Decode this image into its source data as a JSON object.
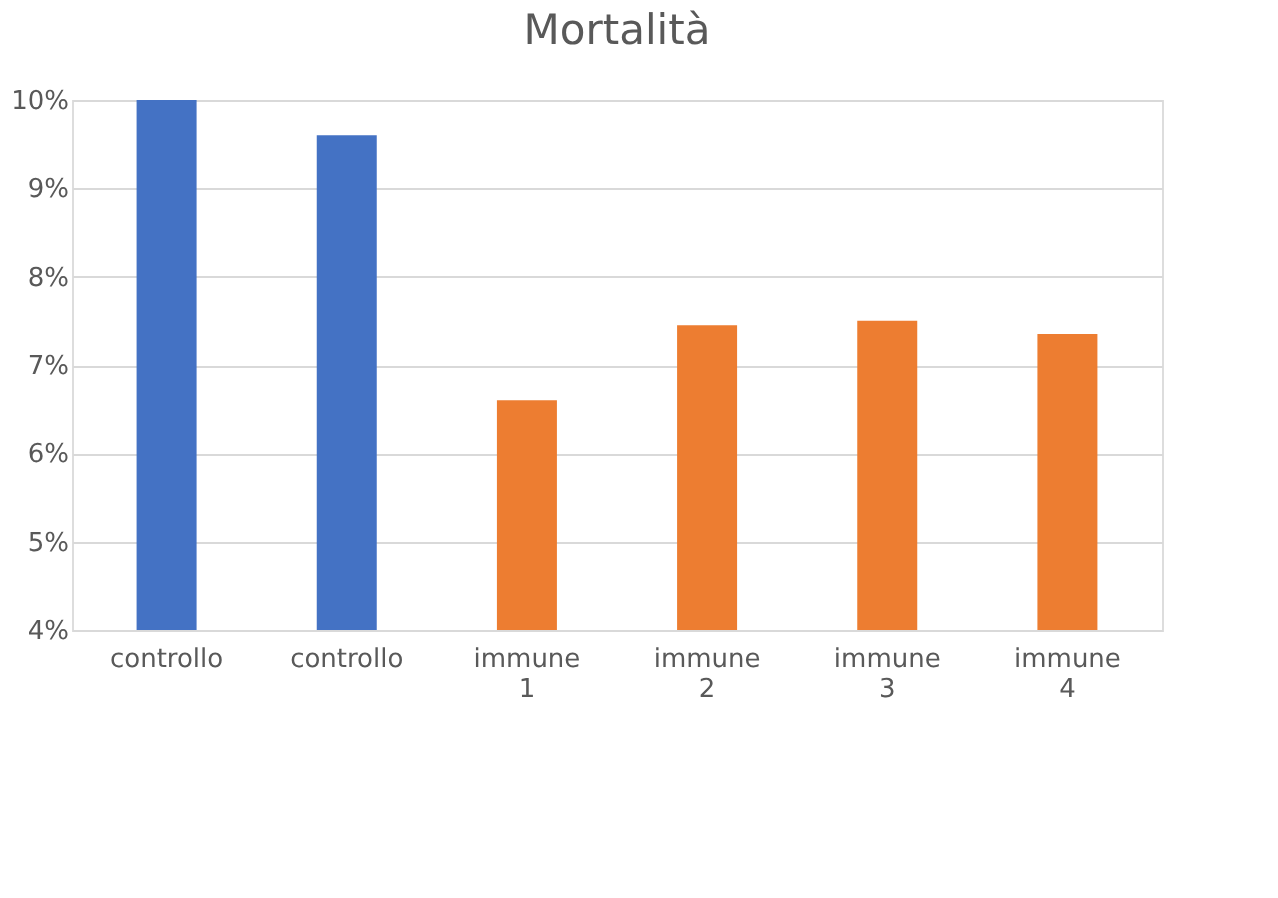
{
  "chart_data": {
    "type": "bar",
    "title": "Mortalità",
    "categories": [
      "controllo",
      "controllo",
      "immune 1",
      "immune 2",
      "immune 3",
      "immune 4"
    ],
    "values": [
      10,
      9.6,
      6.6,
      7.45,
      7.5,
      7.35
    ],
    "colors": [
      "#4472c4",
      "#4472c4",
      "#ed7d31",
      "#ed7d31",
      "#ed7d31",
      "#ed7d31"
    ],
    "ylim": [
      4,
      10
    ],
    "yticks": [
      {
        "value": 4,
        "label": "4%"
      },
      {
        "value": 5,
        "label": "5%"
      },
      {
        "value": 6,
        "label": "6%"
      },
      {
        "value": 7,
        "label": "7%"
      },
      {
        "value": 8,
        "label": "8%"
      },
      {
        "value": 9,
        "label": "9%"
      },
      {
        "value": 10,
        "label": "10%"
      }
    ],
    "grid": "y"
  }
}
